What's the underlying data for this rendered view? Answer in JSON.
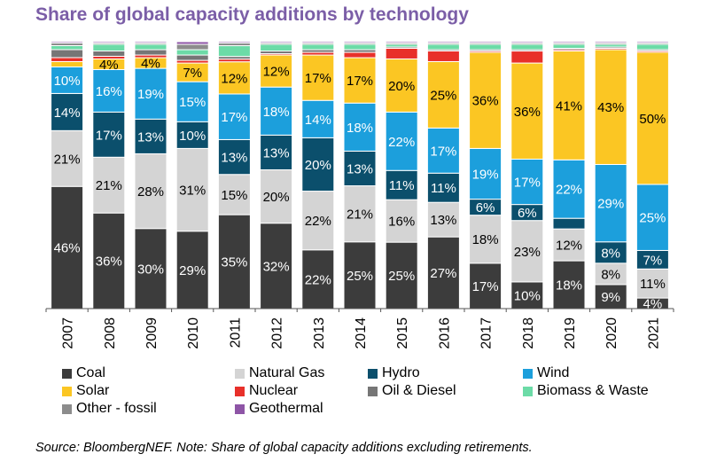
{
  "title": "Share of global capacity additions by technology",
  "source": "Source: BloombergNEF. Note: Share of global capacity additions excluding retirements.",
  "chart_data": {
    "type": "bar",
    "stacked": true,
    "percent_stacked": true,
    "categories": [
      "2007",
      "2008",
      "2009",
      "2010",
      "2011",
      "2012",
      "2013",
      "2014",
      "2015",
      "2016",
      "2017",
      "2018",
      "2019",
      "2020",
      "2021"
    ],
    "ylim": [
      0,
      100
    ],
    "series": [
      {
        "name": "Coal",
        "color": "#3c3c3c",
        "label_color": "#ffffff",
        "values": [
          46,
          36,
          30,
          29,
          35,
          32,
          22,
          25,
          25,
          27,
          17,
          10,
          18,
          9,
          4
        ],
        "labels": [
          "46%",
          "36%",
          "30%",
          "29%",
          "35%",
          "32%",
          "22%",
          "25%",
          "25%",
          "27%",
          "17%",
          "10%",
          "18%",
          "9%",
          "4%"
        ]
      },
      {
        "name": "Natural Gas",
        "color": "#d4d4d4",
        "label_color": "#000000",
        "values": [
          21,
          21,
          28,
          31,
          15,
          20,
          22,
          21,
          16,
          13,
          18,
          23,
          12,
          8,
          11
        ],
        "labels": [
          "21%",
          "21%",
          "28%",
          "31%",
          "15%",
          "20%",
          "22%",
          "21%",
          "16%",
          "13%",
          "18%",
          "23%",
          "12%",
          "8%",
          "11%"
        ]
      },
      {
        "name": "Hydro",
        "color": "#0b4f6c",
        "label_color": "#ffffff",
        "values": [
          14,
          17,
          13,
          10,
          13,
          13,
          20,
          13,
          11,
          11,
          6,
          6,
          4,
          8,
          7
        ],
        "labels": [
          "14%",
          "17%",
          "13%",
          "10%",
          "13%",
          "13%",
          "20%",
          "13%",
          "11%",
          "11%",
          "6%",
          "6%",
          "",
          "8%",
          "7%"
        ]
      },
      {
        "name": "Wind",
        "color": "#1c9fdc",
        "label_color": "#ffffff",
        "values": [
          10,
          16,
          19,
          15,
          17,
          18,
          14,
          18,
          22,
          17,
          19,
          17,
          22,
          29,
          25
        ],
        "labels": [
          "10%",
          "16%",
          "19%",
          "15%",
          "17%",
          "18%",
          "14%",
          "18%",
          "22%",
          "17%",
          "19%",
          "17%",
          "22%",
          "29%",
          "25%"
        ]
      },
      {
        "name": "Solar",
        "color": "#fbc623",
        "label_color": "#000000",
        "values": [
          2,
          4,
          4,
          7,
          12,
          12,
          17,
          17,
          20,
          25,
          36,
          36,
          41,
          43,
          50
        ],
        "labels": [
          "",
          "4%",
          "4%",
          "7%",
          "12%",
          "12%",
          "17%",
          "17%",
          "20%",
          "25%",
          "36%",
          "36%",
          "41%",
          "43%",
          "50%"
        ]
      },
      {
        "name": "Nuclear",
        "color": "#e8302a",
        "label_color": "#ffffff",
        "values": [
          1.5,
          1,
          1,
          1,
          1,
          0.5,
          1,
          2,
          4,
          4,
          0.5,
          4.5,
          0.5,
          0.5,
          0.5
        ],
        "labels": [
          "",
          "",
          "",
          "",
          "",
          "",
          "",
          "",
          "",
          "",
          "",
          "",
          "",
          "",
          ""
        ]
      },
      {
        "name": "Oil & Diesel",
        "color": "#767676",
        "label_color": "#ffffff",
        "values": [
          3,
          2,
          2,
          2,
          1,
          1,
          1,
          1,
          0.5,
          0.5,
          0.5,
          0.5,
          0.5,
          0.5,
          0.5
        ],
        "labels": [
          "",
          "",
          "",
          "",
          "",
          "",
          "",
          "",
          "",
          "",
          "",
          "",
          "",
          "",
          ""
        ]
      },
      {
        "name": "Biomass & Waste",
        "color": "#6cdba7",
        "label_color": "#000000",
        "values": [
          1.5,
          2.5,
          2,
          2,
          4,
          2.5,
          2,
          2,
          1,
          2,
          2,
          2,
          1.5,
          1,
          2
        ],
        "labels": [
          "",
          "",
          "",
          "",
          "",
          "",
          "",
          "",
          "",
          "",
          "",
          "",
          "",
          "",
          ""
        ]
      },
      {
        "name": "Other - fossil",
        "color": "#8c8c8c",
        "label_color": "#ffffff",
        "values": [
          1,
          0.5,
          0.5,
          2,
          1,
          0.5,
          0.5,
          0.5,
          0.5,
          0.5,
          0.5,
          0.5,
          0.5,
          0.5,
          0.5
        ],
        "labels": [
          "",
          "",
          "",
          "",
          "",
          "",
          "",
          "",
          "",
          "",
          "",
          "",
          "",
          "",
          ""
        ]
      },
      {
        "name": "Geothermal",
        "color": "#8e55a6",
        "label_color": "#ffffff",
        "values": [
          0.5,
          0.5,
          0.5,
          1,
          0.5,
          0.5,
          0.5,
          0.5,
          0.5,
          0.5,
          0.5,
          0.5,
          0.5,
          0.5,
          0.5
        ],
        "labels": [
          "",
          "",
          "",
          "",
          "",
          "",
          "",
          "",
          "",
          "",
          "",
          "",
          "",
          "",
          ""
        ]
      }
    ],
    "legend_position": "bottom",
    "grid": false
  }
}
